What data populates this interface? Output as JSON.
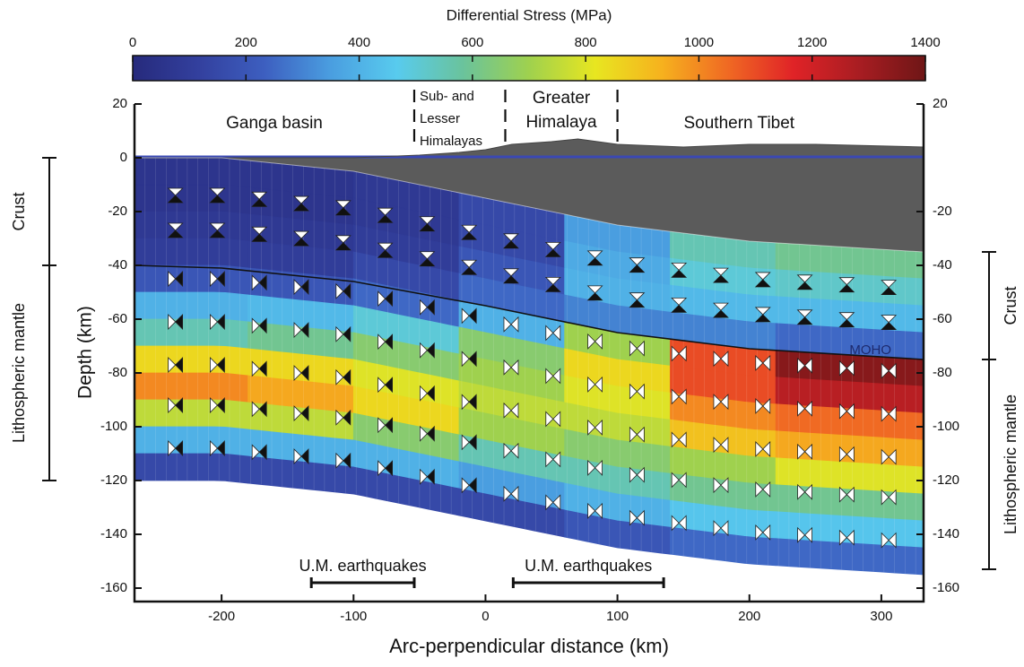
{
  "chart_data": {
    "type": "cross-section",
    "colorbar": {
      "title": "Differential Stress (MPa)",
      "clim": [
        0,
        1400
      ],
      "ticks": [
        0,
        200,
        400,
        600,
        800,
        1000,
        1200,
        1400
      ],
      "colormap": [
        "#262a7c",
        "#33409e",
        "#3d5fc0",
        "#4a9ee0",
        "#58cbee",
        "#6ac39c",
        "#9fd14e",
        "#e8e620",
        "#f6b21e",
        "#f06a23",
        "#e02327",
        "#a81d22",
        "#6e1616"
      ]
    },
    "xlabel": "Arc-perpendicular distance (km)",
    "ylabel": "Depth (km)",
    "xlim": [
      -266,
      332
    ],
    "ylim": [
      -165,
      20
    ],
    "xticks": [
      -200,
      -100,
      0,
      100,
      200,
      300
    ],
    "yticks": [
      20,
      0,
      -20,
      -40,
      -60,
      -80,
      -100,
      -120,
      -140,
      -160
    ],
    "y2ticks": [
      20,
      -20,
      -40,
      -60,
      -80,
      -100,
      -120,
      -140,
      -160
    ],
    "regions": {
      "boundaries": [
        -54,
        15,
        100
      ],
      "labels": [
        [
          "Ganga basin"
        ],
        [
          "Sub- and",
          "Lesser",
          "Himalayas"
        ],
        [
          "Greater",
          "Himalaya"
        ],
        [
          "Southern Tibet"
        ]
      ]
    },
    "topography": {
      "x": [
        -266,
        -200,
        -150,
        -100,
        -50,
        -20,
        0,
        20,
        50,
        70,
        100,
        150,
        200,
        250,
        332
      ],
      "elevation": [
        0,
        0,
        0,
        0,
        1,
        2,
        3,
        5,
        6,
        7,
        5,
        4,
        5,
        5,
        4
      ]
    },
    "slab": {
      "x": [
        -266,
        -200,
        -100,
        0,
        100,
        200,
        332
      ],
      "top": [
        0,
        0,
        -5,
        -15,
        -25,
        -31,
        -35
      ]
    },
    "moho": {
      "label": "MOHO",
      "x": [
        -266,
        -200,
        -100,
        0,
        100,
        200,
        332
      ],
      "depth": [
        -40,
        -41,
        -46,
        -55,
        -65,
        -71,
        -75
      ]
    },
    "stress": {
      "column_edges": [
        -266,
        -180,
        -100,
        -20,
        60,
        140,
        220,
        332
      ],
      "row_edges": [
        0,
        10,
        20,
        30,
        40,
        50,
        60,
        70,
        80,
        90,
        100,
        110,
        120
      ],
      "values": [
        [
          60,
          60,
          80,
          150,
          350,
          550,
          600
        ],
        [
          60,
          60,
          80,
          150,
          380,
          500,
          520
        ],
        [
          80,
          80,
          100,
          200,
          400,
          420,
          420
        ],
        [
          100,
          100,
          150,
          250,
          300,
          300,
          250
        ],
        [
          200,
          200,
          250,
          400,
          700,
          1100,
          1350
        ],
        [
          400,
          420,
          500,
          650,
          850,
          1100,
          1250
        ],
        [
          550,
          600,
          650,
          700,
          800,
          1000,
          1050
        ],
        [
          850,
          850,
          800,
          750,
          750,
          900,
          950
        ],
        [
          1000,
          950,
          850,
          700,
          650,
          700,
          800
        ],
        [
          750,
          750,
          650,
          550,
          550,
          600,
          600
        ],
        [
          400,
          400,
          400,
          350,
          400,
          450,
          450
        ],
        [
          150,
          150,
          150,
          150,
          200,
          250,
          250
        ]
      ]
    },
    "brackets": [
      {
        "label": "Crust",
        "side": "left",
        "range": [
          0,
          -40
        ]
      },
      {
        "label": "Lithospheric mantle",
        "side": "left",
        "range": [
          -40,
          -120
        ]
      },
      {
        "label": "Crust",
        "side": "right",
        "range": [
          -35,
          -75
        ]
      },
      {
        "label": "Lithospheric mantle",
        "side": "right",
        "range": [
          -75,
          -153
        ]
      }
    ],
    "annotations": [
      {
        "text": "U.M. earthquakes",
        "x": [
          -132,
          -54
        ],
        "depth": -158
      },
      {
        "text": "U.M. earthquakes",
        "x": [
          21,
          135
        ],
        "depth": -158
      }
    ]
  }
}
